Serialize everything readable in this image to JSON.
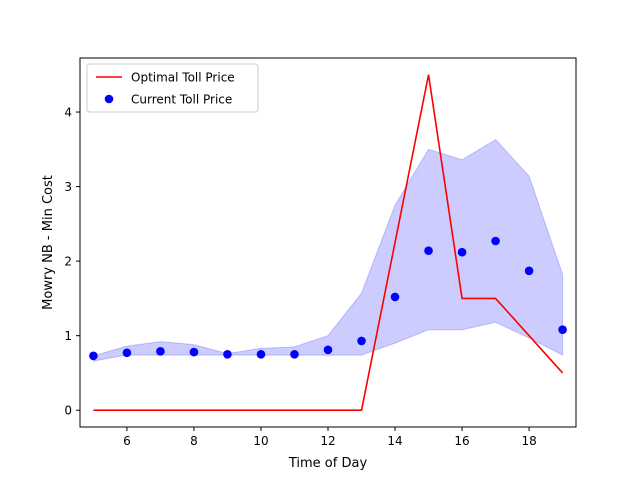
{
  "chart_data": {
    "type": "line",
    "title": "",
    "xlabel": "Time of Day",
    "ylabel": "Mowry NB - Min Cost",
    "xlim": [
      4.6,
      19.4
    ],
    "ylim": [
      -0.225,
      4.725
    ],
    "xticks": [
      6,
      8,
      10,
      12,
      14,
      16,
      18
    ],
    "yticks": [
      0,
      1,
      2,
      3,
      4
    ],
    "grid": false,
    "legend_position": "upper-left",
    "legend": [
      {
        "label": "Optimal Toll Price",
        "kind": "line"
      },
      {
        "label": "Current Toll Price",
        "kind": "marker"
      }
    ],
    "x": [
      5,
      6,
      7,
      8,
      9,
      10,
      11,
      12,
      13,
      14,
      15,
      16,
      17,
      18,
      19
    ],
    "series": [
      {
        "name": "Optimal Toll Price",
        "kind": "line",
        "color": "#ff0000",
        "values": [
          0,
          0,
          0,
          0,
          0,
          0,
          0,
          0,
          0,
          2.25,
          4.5,
          1.5,
          1.5,
          1.0,
          0.5
        ]
      },
      {
        "name": "Current Toll Price",
        "kind": "scatter",
        "color": "#0000ff",
        "values": [
          0.73,
          0.77,
          0.79,
          0.78,
          0.75,
          0.75,
          0.75,
          0.81,
          0.93,
          1.52,
          2.14,
          2.12,
          2.27,
          1.87,
          1.08
        ]
      }
    ],
    "band": {
      "color": "#0000ff",
      "opacity": 0.2,
      "upper": [
        0.73,
        0.86,
        0.92,
        0.88,
        0.76,
        0.83,
        0.85,
        1.0,
        1.57,
        2.75,
        3.5,
        3.36,
        3.63,
        3.14,
        1.82
      ],
      "lower": [
        0.66,
        0.74,
        0.74,
        0.74,
        0.74,
        0.74,
        0.74,
        0.74,
        0.74,
        0.9,
        1.08,
        1.08,
        1.18,
        0.97,
        0.74
      ]
    }
  }
}
